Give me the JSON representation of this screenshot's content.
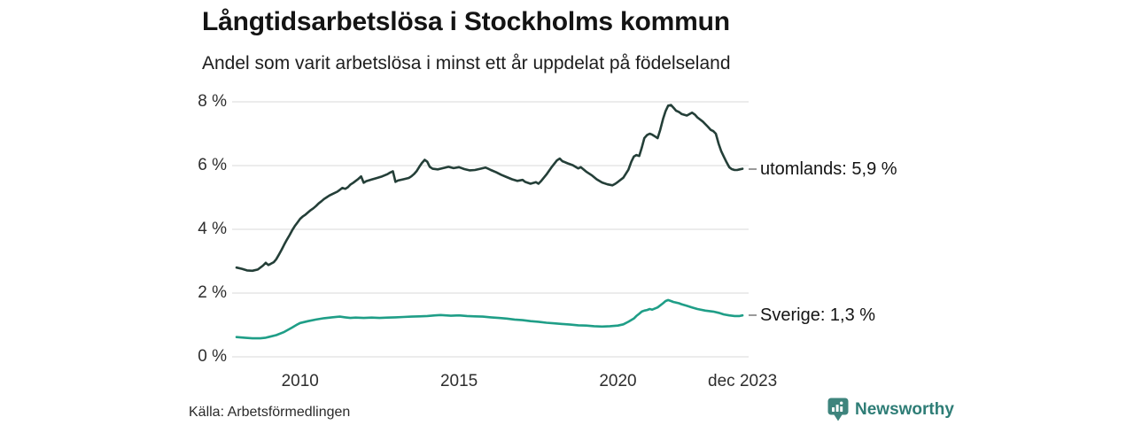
{
  "header": {
    "title": "Långtidsarbetslösa i Stockholms kommun",
    "subtitle": "Andel som varit arbetslösa i minst ett år uppdelat på födelseland"
  },
  "source": {
    "label": "Källa: Arbetsförmedlingen"
  },
  "branding": {
    "name": "Newsworthy",
    "text_color": "#2e7d76",
    "icon_color": "#3e847d",
    "icon": "bar-chart-speech-bubble-icon"
  },
  "chart_data": {
    "type": "line",
    "title": "Långtidsarbetslösa i Stockholms kommun",
    "subtitle": "Andel som varit arbetslösa i minst ett år uppdelat på födelseland",
    "xlabel": "",
    "ylabel": "",
    "xlim": [
      2008.0,
      2024.0
    ],
    "ylim": [
      0,
      8
    ],
    "grid": "horizontal-only",
    "grid_color": "#d9d9d9",
    "legend_position": "right-end-annotations",
    "y_ticks": [
      {
        "value": 0,
        "label": "0 %"
      },
      {
        "value": 2,
        "label": "2 %"
      },
      {
        "value": 4,
        "label": "4 %"
      },
      {
        "value": 6,
        "label": "6 %"
      },
      {
        "value": 8,
        "label": "8 %"
      }
    ],
    "x_ticks": [
      {
        "value": 2010,
        "label": "2010"
      },
      {
        "value": 2015,
        "label": "2015"
      },
      {
        "value": 2020,
        "label": "2020"
      },
      {
        "value": 2023.92,
        "label": "dec 2023"
      }
    ],
    "series": [
      {
        "name": "utomlands",
        "end_label": "utomlands: 5,9 %",
        "end_value_label": "5,9 %",
        "color": "#243f38",
        "x": [
          2008.0,
          2008.17,
          2008.33,
          2008.5,
          2008.67,
          2008.83,
          2008.92,
          2009.0,
          2009.08,
          2009.17,
          2009.25,
          2009.33,
          2009.42,
          2009.5,
          2009.58,
          2009.67,
          2009.75,
          2009.83,
          2009.92,
          2010.0,
          2010.08,
          2010.17,
          2010.25,
          2010.33,
          2010.42,
          2010.5,
          2010.58,
          2010.67,
          2010.75,
          2010.83,
          2010.92,
          2011.0,
          2011.17,
          2011.25,
          2011.33,
          2011.42,
          2011.5,
          2011.58,
          2011.67,
          2011.75,
          2011.83,
          2011.92,
          2012.0,
          2012.08,
          2012.25,
          2012.42,
          2012.58,
          2012.75,
          2012.83,
          2012.92,
          2013.0,
          2013.08,
          2013.25,
          2013.42,
          2013.5,
          2013.58,
          2013.67,
          2013.75,
          2013.83,
          2013.92,
          2014.0,
          2014.08,
          2014.17,
          2014.33,
          2014.5,
          2014.67,
          2014.83,
          2015.0,
          2015.17,
          2015.33,
          2015.5,
          2015.67,
          2015.83,
          2015.92,
          2016.0,
          2016.17,
          2016.33,
          2016.5,
          2016.67,
          2016.83,
          2017.0,
          2017.08,
          2017.25,
          2017.42,
          2017.5,
          2017.58,
          2017.75,
          2017.92,
          2018.08,
          2018.17,
          2018.25,
          2018.42,
          2018.58,
          2018.75,
          2018.83,
          2019.0,
          2019.17,
          2019.33,
          2019.5,
          2019.67,
          2019.83,
          2019.92,
          2020.0,
          2020.17,
          2020.33,
          2020.42,
          2020.5,
          2020.58,
          2020.67,
          2020.75,
          2020.83,
          2020.92,
          2021.0,
          2021.08,
          2021.17,
          2021.25,
          2021.33,
          2021.42,
          2021.5,
          2021.58,
          2021.67,
          2021.75,
          2021.83,
          2021.92,
          2022.0,
          2022.17,
          2022.33,
          2022.42,
          2022.5,
          2022.67,
          2022.83,
          2022.92,
          2023.0,
          2023.08,
          2023.17,
          2023.25,
          2023.33,
          2023.42,
          2023.5,
          2023.58,
          2023.67,
          2023.75,
          2023.83,
          2023.92
        ],
        "values": [
          2.8,
          2.76,
          2.71,
          2.7,
          2.74,
          2.86,
          2.95,
          2.88,
          2.92,
          2.97,
          3.06,
          3.2,
          3.36,
          3.52,
          3.67,
          3.82,
          3.97,
          4.1,
          4.22,
          4.33,
          4.4,
          4.46,
          4.53,
          4.6,
          4.66,
          4.73,
          4.81,
          4.88,
          4.95,
          5.0,
          5.06,
          5.1,
          5.18,
          5.24,
          5.3,
          5.27,
          5.32,
          5.4,
          5.46,
          5.52,
          5.58,
          5.66,
          5.46,
          5.51,
          5.56,
          5.61,
          5.66,
          5.73,
          5.78,
          5.82,
          5.49,
          5.53,
          5.57,
          5.61,
          5.66,
          5.73,
          5.83,
          5.96,
          6.08,
          6.18,
          6.12,
          5.96,
          5.9,
          5.88,
          5.92,
          5.96,
          5.92,
          5.95,
          5.89,
          5.85,
          5.86,
          5.9,
          5.94,
          5.9,
          5.86,
          5.79,
          5.71,
          5.64,
          5.57,
          5.52,
          5.55,
          5.49,
          5.43,
          5.48,
          5.43,
          5.51,
          5.72,
          5.96,
          6.16,
          6.22,
          6.14,
          6.07,
          6.01,
          5.91,
          5.95,
          5.81,
          5.7,
          5.57,
          5.47,
          5.41,
          5.38,
          5.43,
          5.49,
          5.62,
          5.87,
          6.12,
          6.28,
          6.33,
          6.3,
          6.56,
          6.86,
          6.96,
          7.0,
          6.97,
          6.91,
          6.86,
          7.12,
          7.46,
          7.71,
          7.88,
          7.9,
          7.81,
          7.72,
          7.68,
          7.62,
          7.57,
          7.66,
          7.6,
          7.51,
          7.38,
          7.22,
          7.12,
          7.08,
          7.0,
          6.68,
          6.45,
          6.28,
          6.1,
          5.95,
          5.89,
          5.86,
          5.86,
          5.88,
          5.9
        ]
      },
      {
        "name": "Sverige",
        "end_label": "Sverige: 1,3 %",
        "end_value_label": "1,3 %",
        "color": "#1f9e87",
        "x": [
          2008.0,
          2008.25,
          2008.5,
          2008.75,
          2008.92,
          2009.0,
          2009.25,
          2009.5,
          2009.75,
          2009.92,
          2010.0,
          2010.25,
          2010.5,
          2010.75,
          2011.0,
          2011.25,
          2011.42,
          2011.58,
          2011.75,
          2012.0,
          2012.25,
          2012.5,
          2012.75,
          2013.0,
          2013.25,
          2013.5,
          2013.75,
          2014.0,
          2014.25,
          2014.42,
          2014.58,
          2014.75,
          2015.0,
          2015.25,
          2015.5,
          2015.75,
          2016.0,
          2016.25,
          2016.5,
          2016.75,
          2017.0,
          2017.25,
          2017.5,
          2017.75,
          2018.0,
          2018.25,
          2018.5,
          2018.75,
          2019.0,
          2019.25,
          2019.5,
          2019.75,
          2020.0,
          2020.17,
          2020.33,
          2020.5,
          2020.58,
          2020.67,
          2020.75,
          2020.83,
          2020.92,
          2021.0,
          2021.08,
          2021.25,
          2021.42,
          2021.5,
          2021.58,
          2021.67,
          2021.75,
          2021.92,
          2022.0,
          2022.17,
          2022.33,
          2022.5,
          2022.75,
          2023.0,
          2023.17,
          2023.33,
          2023.5,
          2023.67,
          2023.83,
          2023.92
        ],
        "values": [
          0.62,
          0.6,
          0.58,
          0.58,
          0.6,
          0.62,
          0.68,
          0.78,
          0.92,
          1.02,
          1.06,
          1.12,
          1.17,
          1.21,
          1.24,
          1.26,
          1.24,
          1.22,
          1.23,
          1.22,
          1.23,
          1.22,
          1.23,
          1.24,
          1.25,
          1.26,
          1.27,
          1.28,
          1.3,
          1.31,
          1.3,
          1.29,
          1.3,
          1.28,
          1.27,
          1.26,
          1.24,
          1.22,
          1.2,
          1.17,
          1.15,
          1.12,
          1.1,
          1.07,
          1.05,
          1.03,
          1.01,
          0.99,
          0.98,
          0.96,
          0.95,
          0.96,
          0.98,
          1.02,
          1.1,
          1.2,
          1.28,
          1.35,
          1.42,
          1.45,
          1.47,
          1.5,
          1.48,
          1.55,
          1.68,
          1.75,
          1.78,
          1.75,
          1.72,
          1.68,
          1.65,
          1.6,
          1.55,
          1.5,
          1.45,
          1.42,
          1.38,
          1.33,
          1.3,
          1.28,
          1.28,
          1.3
        ]
      }
    ]
  }
}
